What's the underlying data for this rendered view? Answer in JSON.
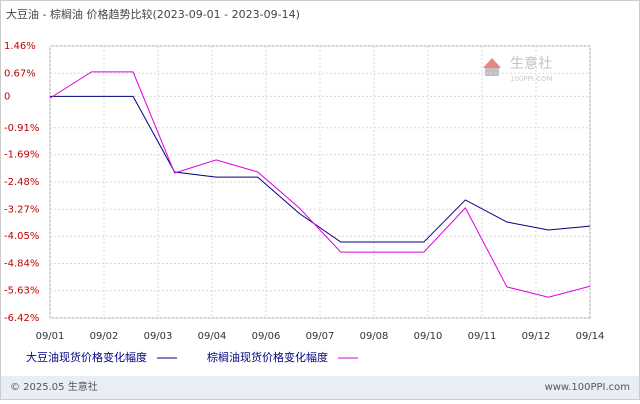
{
  "chart_data": {
    "type": "line",
    "title": "大豆油 - 棕榈油 价格趋势比较(2023-09-01 - 2023-09-14)",
    "x": [
      1,
      2,
      3,
      4,
      5,
      6,
      7,
      8,
      9,
      10,
      11,
      12,
      13,
      14
    ],
    "xlim": [
      1,
      14
    ],
    "xticks": [
      {
        "value": 1,
        "label": "09/01"
      },
      {
        "value": 2.3,
        "label": "09/02"
      },
      {
        "value": 3.6,
        "label": "09/03"
      },
      {
        "value": 4.9,
        "label": "09/04"
      },
      {
        "value": 6.2,
        "label": "09/06"
      },
      {
        "value": 7.5,
        "label": "09/07"
      },
      {
        "value": 8.8,
        "label": "09/08"
      },
      {
        "value": 10.1,
        "label": "09/10"
      },
      {
        "value": 11.4,
        "label": "09/11"
      },
      {
        "value": 12.7,
        "label": "09/12"
      },
      {
        "value": 14,
        "label": "09/14"
      }
    ],
    "ylim": [
      -6.42,
      1.46
    ],
    "yticks": [
      {
        "value": 1.46,
        "label": "1.46%"
      },
      {
        "value": 0.67,
        "label": "0.67%"
      },
      0,
      {
        "value": -0.91,
        "label": "-0.91%"
      },
      {
        "value": -1.69,
        "label": "-1.69%"
      },
      {
        "value": -2.48,
        "label": "-2.48%"
      },
      {
        "value": -3.27,
        "label": "-3.27%"
      },
      {
        "value": -4.05,
        "label": "-4.05%"
      },
      {
        "value": -4.84,
        "label": "-4.84%"
      },
      {
        "value": -5.63,
        "label": "-5.63%"
      },
      {
        "value": -6.42,
        "label": "-6.42%"
      }
    ],
    "grid": true,
    "series": [
      {
        "name": "大豆油现货价格变化幅度",
        "color": "#000080",
        "values": [
          0,
          0,
          0,
          -2.19,
          -2.34,
          -2.34,
          -3.39,
          -4.22,
          -4.22,
          -4.22,
          -3.0,
          -3.64,
          -3.87,
          -3.76
        ]
      },
      {
        "name": "棕榈油现货价格变化幅度",
        "color": "#e000e0",
        "values": [
          -0.05,
          0.71,
          0.71,
          -2.22,
          -1.84,
          -2.19,
          -3.23,
          -4.51,
          -4.51,
          -4.51,
          -3.23,
          -5.52,
          -5.82,
          -5.5
        ]
      }
    ]
  },
  "watermark": {
    "name": "生意社",
    "site": "100PPI.COM"
  },
  "footer": {
    "copyright": "© 2025.05 生意社",
    "site": "www.100PPI.com"
  }
}
